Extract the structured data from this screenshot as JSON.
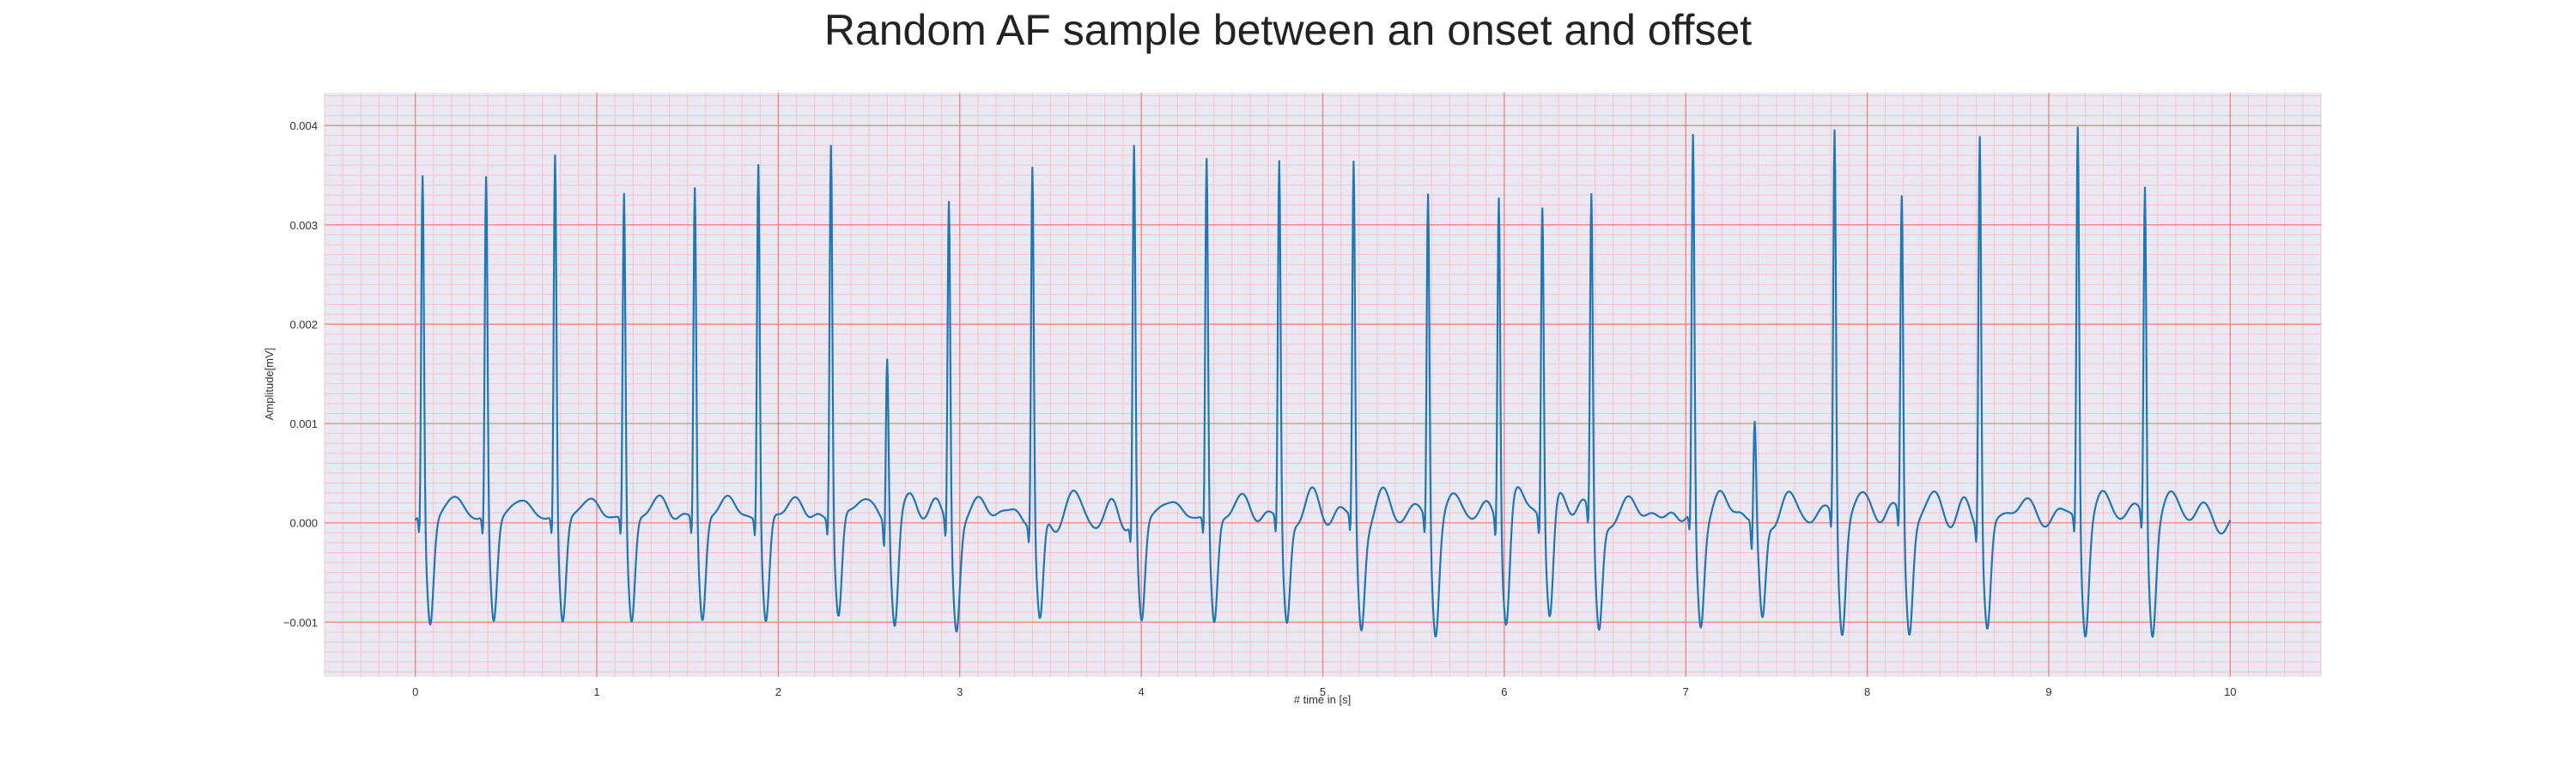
{
  "chart_data": {
    "type": "line",
    "title": "Random AF sample between an onset and offset",
    "xlabel": "# time in [s]",
    "ylabel": "Amplitude[mV]",
    "xlim": [
      -0.5,
      10.5
    ],
    "ylim": [
      -0.00155,
      0.00433
    ],
    "xticks": [
      0,
      1,
      2,
      3,
      4,
      5,
      6,
      7,
      8,
      9,
      10
    ],
    "yticks": [
      -0.001,
      0.0,
      0.001,
      0.002,
      0.003,
      0.004
    ],
    "xtick_labels": [
      "0",
      "1",
      "2",
      "3",
      "4",
      "5",
      "6",
      "7",
      "8",
      "9",
      "10"
    ],
    "ytick_labels": [
      "−0.001",
      "0.000",
      "0.001",
      "0.002",
      "0.003",
      "0.004"
    ],
    "grid": true,
    "colors": {
      "line": "#1f77b4",
      "plot_background": "#eae8f2",
      "major_grid": "#f08080",
      "minor_grid": "#f4c4cc"
    },
    "series": [
      {
        "peaks": [
          {
            "t": 0.04,
            "amp": 0.00349
          },
          {
            "t": 0.39,
            "amp": 0.00348
          },
          {
            "t": 0.77,
            "amp": 0.00371
          },
          {
            "t": 1.15,
            "amp": 0.00333
          },
          {
            "t": 1.54,
            "amp": 0.00339
          },
          {
            "t": 1.89,
            "amp": 0.00365
          },
          {
            "t": 2.29,
            "amp": 0.00383
          },
          {
            "t": 2.6,
            "amp": 0.00174
          },
          {
            "t": 2.94,
            "amp": 0.00333
          },
          {
            "t": 3.4,
            "amp": 0.00367
          },
          {
            "t": 3.96,
            "amp": 0.00385
          },
          {
            "t": 4.36,
            "amp": 0.00368
          },
          {
            "t": 4.76,
            "amp": 0.00366
          },
          {
            "t": 5.17,
            "amp": 0.00365
          },
          {
            "t": 5.58,
            "amp": 0.00339
          },
          {
            "t": 5.97,
            "amp": 0.00338
          },
          {
            "t": 6.21,
            "amp": 0.00321
          },
          {
            "t": 6.48,
            "amp": 0.0033
          },
          {
            "t": 7.04,
            "amp": 0.00388
          },
          {
            "t": 7.38,
            "amp": 0.00103
          },
          {
            "t": 7.82,
            "amp": 0.004
          },
          {
            "t": 8.19,
            "amp": 0.00331
          },
          {
            "t": 8.62,
            "amp": 0.00403
          },
          {
            "t": 9.16,
            "amp": 0.00406
          },
          {
            "t": 9.53,
            "amp": 0.00342
          }
        ],
        "t_range": [
          0.0,
          10.0
        ]
      }
    ]
  }
}
